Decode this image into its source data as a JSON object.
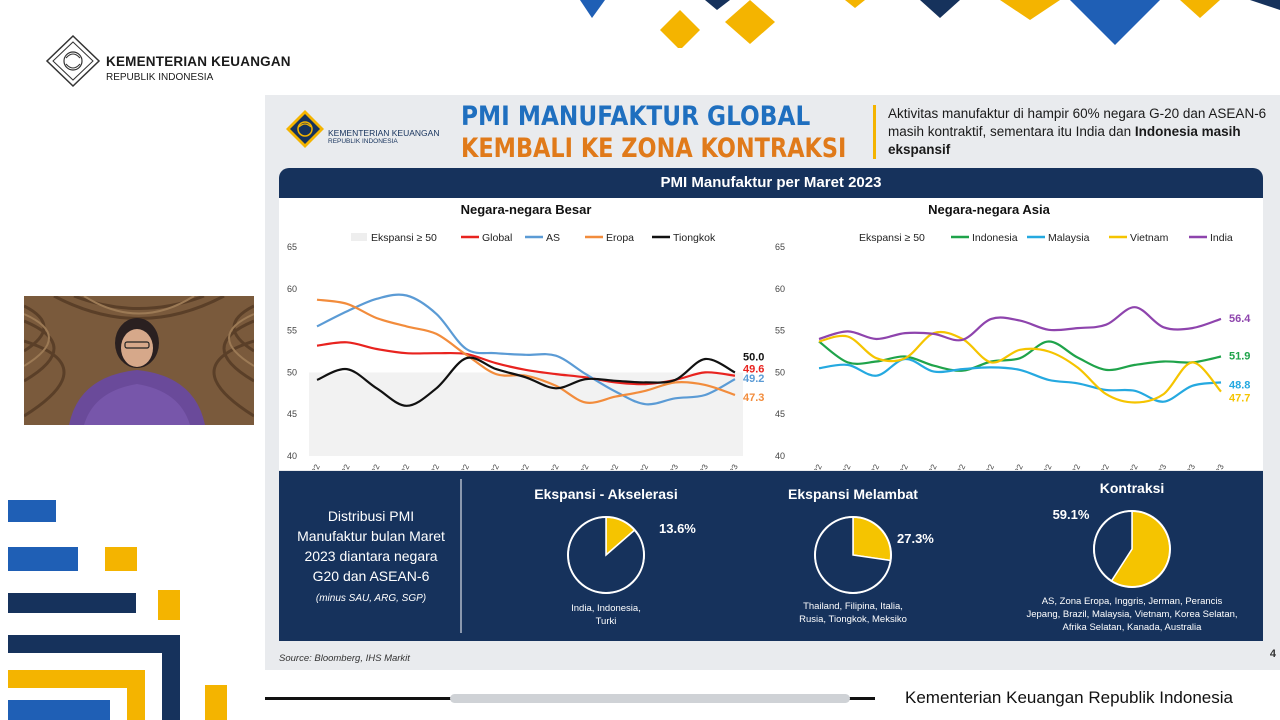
{
  "header": {
    "org_name": "KEMENTERIAN KEUANGAN",
    "org_sub": "REPUBLIK INDONESIA"
  },
  "slide": {
    "brand_name": "KEMENTERIAN KEUANGAN",
    "brand_sub": "REPUBLIK INDONESIA",
    "title_line1": "PMI MANUFAKTUR GLOBAL",
    "title_line2": "KEMBALI KE ZONA KONTRAKSI",
    "summary_part1": "Aktivitas manufaktur di hampir 60% negara G-20 dan ASEAN-6 masih kontraktif, sementara itu India dan ",
    "summary_bold": "Indonesia masih ekspansif",
    "banner": "PMI Manufaktur per Maret 2023",
    "source": "Source: Bloomberg, IHS Markit",
    "page_number": "4",
    "colors": {
      "navy": "#16325c",
      "blue_title": "#1f6fbf",
      "orange_title": "#e07a1a",
      "gold": "#f4b400"
    }
  },
  "footer": {
    "text": "Kementerian Keuangan Republik Indonesia"
  },
  "chart_data": [
    {
      "type": "line",
      "title": "Negara-negara Besar",
      "x": [
        "Jan-22",
        "Feb-22",
        "Mar-22",
        "Apr-22",
        "May-22",
        "Jun-22",
        "Jul-22",
        "Aug-22",
        "Sep-22",
        "Oct-22",
        "Nov-22",
        "Dec-22",
        "Jan-23",
        "Feb-23",
        "Mar-23"
      ],
      "ylim": [
        40,
        65
      ],
      "yticks": [
        40,
        45,
        50,
        55,
        60,
        65
      ],
      "shaded_band": {
        "name": "Ekspansi ≥ 50",
        "from": 50,
        "to": 65
      },
      "legend_position": "top",
      "series": [
        {
          "name": "Global",
          "color": "#e8231f",
          "values": [
            53.2,
            53.6,
            52.8,
            52.3,
            52.3,
            52.2,
            51.1,
            50.3,
            49.8,
            49.4,
            48.8,
            48.6,
            49.1,
            50.0,
            49.6
          ],
          "end_label": "49.6"
        },
        {
          "name": "AS",
          "color": "#5b9bd5",
          "values": [
            55.5,
            57.3,
            58.8,
            59.2,
            57.0,
            52.8,
            52.3,
            52.1,
            52.0,
            49.8,
            47.7,
            46.2,
            46.9,
            47.3,
            49.2
          ],
          "end_label": "49.2"
        },
        {
          "name": "Eropa",
          "color": "#f28c3c",
          "values": [
            58.7,
            58.2,
            56.5,
            55.5,
            54.6,
            52.1,
            49.8,
            49.6,
            48.4,
            46.4,
            47.1,
            47.8,
            48.8,
            48.5,
            47.3
          ],
          "end_label": "47.3"
        },
        {
          "name": "Tiongkok",
          "color": "#111111",
          "values": [
            49.1,
            50.4,
            48.1,
            46.0,
            48.1,
            51.7,
            50.4,
            49.4,
            48.1,
            49.2,
            49.0,
            48.8,
            49.1,
            51.6,
            50.0
          ],
          "end_label": "50.0"
        }
      ]
    },
    {
      "type": "line",
      "title": "Negara-negara Asia",
      "x": [
        "Jan-22",
        "Feb-22",
        "Mar-22",
        "Apr-22",
        "May-22",
        "Jun-22",
        "Jul-22",
        "Aug-22",
        "Sep-22",
        "Oct-22",
        "Nov-22",
        "Dec-22",
        "Jan-23",
        "Feb-23",
        "Mar-23"
      ],
      "ylim": [
        40,
        65
      ],
      "yticks": [
        40,
        45,
        50,
        55,
        60,
        65
      ],
      "shaded_band": {
        "name": "Ekspansi ≥ 50",
        "from": 50,
        "to": 65
      },
      "legend_position": "top",
      "series": [
        {
          "name": "Indonesia",
          "color": "#1fa34a",
          "values": [
            53.7,
            51.2,
            51.3,
            51.9,
            50.8,
            50.2,
            51.3,
            51.7,
            53.7,
            51.8,
            50.3,
            50.9,
            51.3,
            51.2,
            51.9
          ],
          "end_label": "51.9"
        },
        {
          "name": "Malaysia",
          "color": "#25a9e0",
          "values": [
            50.5,
            50.9,
            49.6,
            51.6,
            50.1,
            50.4,
            50.6,
            50.3,
            49.1,
            48.7,
            47.9,
            47.8,
            46.5,
            48.4,
            48.8
          ],
          "end_label": "48.8"
        },
        {
          "name": "Vietnam",
          "color": "#f5c400",
          "values": [
            53.7,
            54.3,
            51.7,
            51.7,
            54.7,
            54.0,
            51.2,
            52.7,
            52.5,
            50.6,
            47.4,
            46.4,
            47.4,
            51.2,
            47.7
          ],
          "end_label": "47.7"
        },
        {
          "name": "India",
          "color": "#8e44ad",
          "values": [
            54.0,
            54.9,
            54.0,
            54.7,
            54.6,
            53.9,
            56.4,
            56.2,
            55.1,
            55.3,
            55.7,
            57.8,
            55.4,
            55.3,
            56.4
          ],
          "end_label": "56.4"
        }
      ]
    },
    {
      "type": "pie",
      "title": "Ekspansi - Akselerasi",
      "slices": [
        {
          "name": "Ekspansi - Akselerasi",
          "value": 13.6,
          "color": "#f5c400"
        },
        {
          "name": "Lainnya",
          "value": 86.4,
          "color": "#16325c"
        }
      ],
      "value_label": "13.6%",
      "countries": "India, Indonesia, Turki"
    },
    {
      "type": "pie",
      "title": "Ekspansi Melambat",
      "slices": [
        {
          "name": "Ekspansi Melambat",
          "value": 27.3,
          "color": "#f5c400"
        },
        {
          "name": "Lainnya",
          "value": 72.7,
          "color": "#16325c"
        }
      ],
      "value_label": "27.3%",
      "countries": "Thailand, Filipina, Italia, Rusia, Tiongkok, Meksiko"
    },
    {
      "type": "pie",
      "title": "Kontraksi",
      "slices": [
        {
          "name": "Kontraksi",
          "value": 59.1,
          "color": "#f5c400"
        },
        {
          "name": "Lainnya",
          "value": 40.9,
          "color": "#16325c"
        }
      ],
      "value_label": "59.1%",
      "countries": "AS, Zona Eropa, Inggris, Jerman, Perancis Jepang, Brazil, Malaysia, Vietnam, Korea Selatan, Afrika Selatan, Kanada, Australia"
    }
  ],
  "distribution": {
    "text": "Distribusi PMI Manufaktur bulan Maret 2023 diantara negara G20 dan ASEAN-6",
    "note": "(minus SAU, ARG, SGP)"
  }
}
